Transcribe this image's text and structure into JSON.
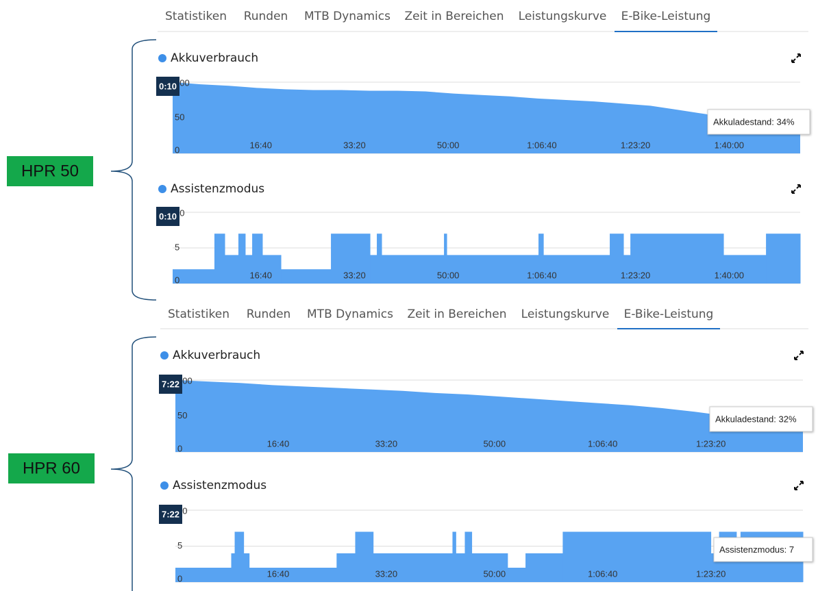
{
  "panels": [
    {
      "label": "HPR 50",
      "tabs": [
        "Statistiken",
        "Runden",
        "MTB Dynamics",
        "Zeit in Bereichen",
        "Leistungskurve",
        "E-Bike-Leistung"
      ],
      "active_tab": 5
    },
    {
      "label": "HPR 60",
      "tabs": [
        "Statistiken",
        "Runden",
        "MTB Dynamics",
        "Zeit in Bereichen",
        "Leistungskurve",
        "E-Bike-Leistung"
      ],
      "active_tab": 5
    }
  ],
  "chart_data": [
    {
      "type": "area",
      "title": "Akkuverbrauch",
      "color": "#58a3f2",
      "grid": true,
      "step": false,
      "x": [
        0,
        300,
        600,
        900,
        1200,
        1500,
        1800,
        2100,
        2400,
        2700,
        3000,
        3300,
        3600,
        3900,
        4200,
        4500,
        4800,
        5100,
        5400,
        5700,
        6000,
        6300,
        6700
      ],
      "values": [
        100,
        97,
        95,
        92,
        90,
        89,
        89,
        88,
        88,
        87,
        84,
        82,
        80,
        77,
        75,
        73,
        70,
        67,
        61,
        55,
        42,
        34,
        30
      ],
      "xlim": [
        0,
        6700
      ],
      "xticks": [
        {
          "value": 1000,
          "label": "16:40"
        },
        {
          "value": 2000,
          "label": "33:20"
        },
        {
          "value": 3000,
          "label": "50:00"
        },
        {
          "value": 4000,
          "label": "1:06:40"
        },
        {
          "value": 5000,
          "label": "1:23:20"
        },
        {
          "value": 6000,
          "label": "1:40:00"
        }
      ],
      "ylim": [
        0,
        100
      ],
      "yticks": [
        0,
        50,
        100
      ],
      "cursor_label": "0:10",
      "tooltip": "Akkuladestand: 34%"
    },
    {
      "type": "step-area",
      "title": "Assistenzmodus",
      "color": "#58a3f2",
      "grid": true,
      "step": true,
      "x": [
        0,
        446,
        556,
        702,
        775,
        849,
        958,
        1156,
        1690,
        2107,
        2180,
        2231,
        2897,
        2926,
        3906,
        3958,
        4667,
        4813,
        4887,
        5881,
        6335
      ],
      "values": [
        2,
        7,
        4,
        7,
        4,
        7,
        4,
        2,
        7,
        4,
        7,
        4,
        7,
        4,
        7,
        4,
        7,
        4,
        7,
        4,
        7
      ],
      "xlim": [
        0,
        6700
      ],
      "xticks": [
        {
          "value": 1000,
          "label": "16:40"
        },
        {
          "value": 2000,
          "label": "33:20"
        },
        {
          "value": 3000,
          "label": "50:00"
        },
        {
          "value": 4000,
          "label": "1:06:40"
        },
        {
          "value": 5000,
          "label": "1:23:20"
        },
        {
          "value": 6000,
          "label": "1:40:00"
        }
      ],
      "ylim": [
        0,
        10
      ],
      "yticks": [
        0,
        5,
        10
      ],
      "cursor_label": "0:10"
    },
    {
      "type": "area",
      "title": "Akkuverbrauch",
      "color": "#58a3f2",
      "grid": true,
      "step": false,
      "x": [
        0,
        300,
        600,
        900,
        1200,
        1500,
        1800,
        2100,
        2400,
        2700,
        3000,
        3300,
        3600,
        3900,
        4200,
        4500,
        4800,
        5100,
        5400,
        5700,
        5800
      ],
      "values": [
        100,
        98,
        96,
        93,
        91,
        89,
        87,
        85,
        82,
        80,
        77,
        74,
        71,
        68,
        65,
        61,
        56,
        50,
        42,
        34,
        32
      ],
      "xlim": [
        0,
        5800
      ],
      "xticks": [
        {
          "value": 1000,
          "label": "16:40"
        },
        {
          "value": 2000,
          "label": "33:20"
        },
        {
          "value": 3000,
          "label": "50:00"
        },
        {
          "value": 4000,
          "label": "1:06:40"
        },
        {
          "value": 5000,
          "label": "1:23:20"
        }
      ],
      "ylim": [
        0,
        100
      ],
      "yticks": [
        0,
        50,
        100
      ],
      "cursor_label": "7:22",
      "tooltip": "Akkuladestand: 32%"
    },
    {
      "type": "step-area",
      "title": "Assistenzmodus",
      "color": "#58a3f2",
      "grid": true,
      "step": true,
      "x": [
        0,
        516,
        548,
        631,
        682,
        1490,
        1662,
        1828,
        2561,
        2592,
        2675,
        2739,
        3070,
        3236,
        3580,
        4949,
        5025,
        5185,
        5223
      ],
      "values": [
        2,
        4,
        7,
        4,
        2,
        4,
        7,
        4,
        7,
        4,
        7,
        4,
        2,
        4,
        7,
        4,
        7,
        4,
        7
      ],
      "xlim": [
        0,
        5800
      ],
      "xticks": [
        {
          "value": 1000,
          "label": "16:40"
        },
        {
          "value": 2000,
          "label": "33:20"
        },
        {
          "value": 3000,
          "label": "50:00"
        },
        {
          "value": 4000,
          "label": "1:06:40"
        },
        {
          "value": 5000,
          "label": "1:23:20"
        }
      ],
      "ylim": [
        0,
        10
      ],
      "yticks": [
        0,
        5,
        10
      ],
      "cursor_label": "7:22",
      "tooltip": "Assistenzmodus: 7"
    }
  ]
}
